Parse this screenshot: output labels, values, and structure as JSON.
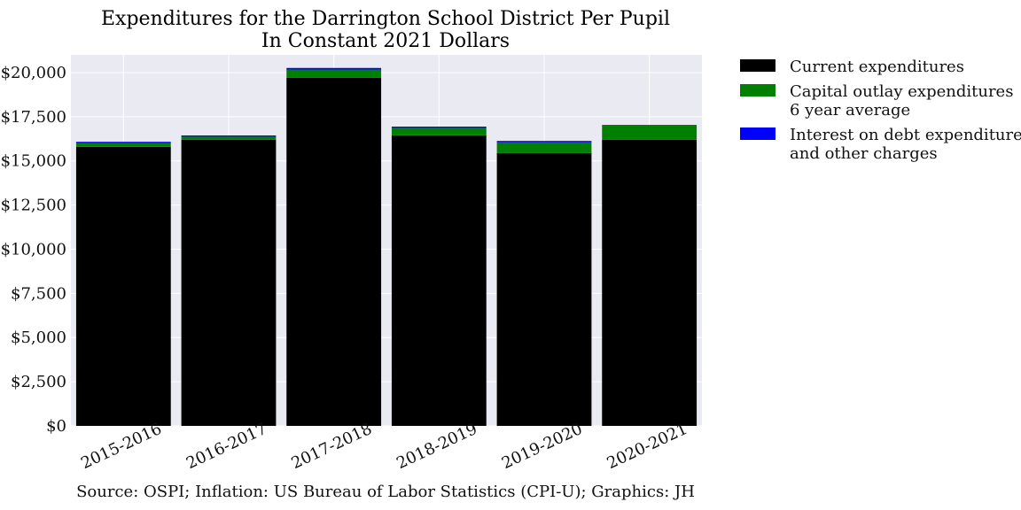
{
  "chart_data": {
    "type": "bar",
    "stacked": true,
    "title": "Expenditures for the Darrington School District Per Pupil",
    "subtitle": "In Constant 2021 Dollars",
    "xlabel": "",
    "ylabel": "",
    "categories": [
      "2015-2016",
      "2016-2017",
      "2017-2018",
      "2018-2019",
      "2019-2020",
      "2020-2021"
    ],
    "series": [
      {
        "name": "Current expenditures",
        "color": "#000000",
        "values": [
          15800,
          16200,
          19700,
          16450,
          15450,
          16200
        ]
      },
      {
        "name": "Capital outlay expenditures\n6 year average",
        "color": "#008000",
        "values": [
          200,
          170,
          470,
          420,
          600,
          840
        ]
      },
      {
        "name": "Interest on debt expenditures\nand other charges",
        "color": "#0000ff",
        "values": [
          80,
          70,
          90,
          70,
          80,
          0
        ]
      }
    ],
    "ylim": [
      0,
      21000
    ],
    "yticks": [
      0,
      2500,
      5000,
      7500,
      10000,
      12500,
      15000,
      17500,
      20000
    ],
    "ytick_labels": [
      "$0",
      "$2,500",
      "$5,000",
      "$7,500",
      "$10,000",
      "$12,500",
      "$15,000",
      "$17,500",
      "$20,000"
    ],
    "grid": true,
    "legend_position": "outside-right",
    "source_note": "Source: OSPI; Inflation: US Bureau of Labor Statistics (CPI-U); Graphics: JH",
    "plot_background": "#eaeaf2"
  }
}
